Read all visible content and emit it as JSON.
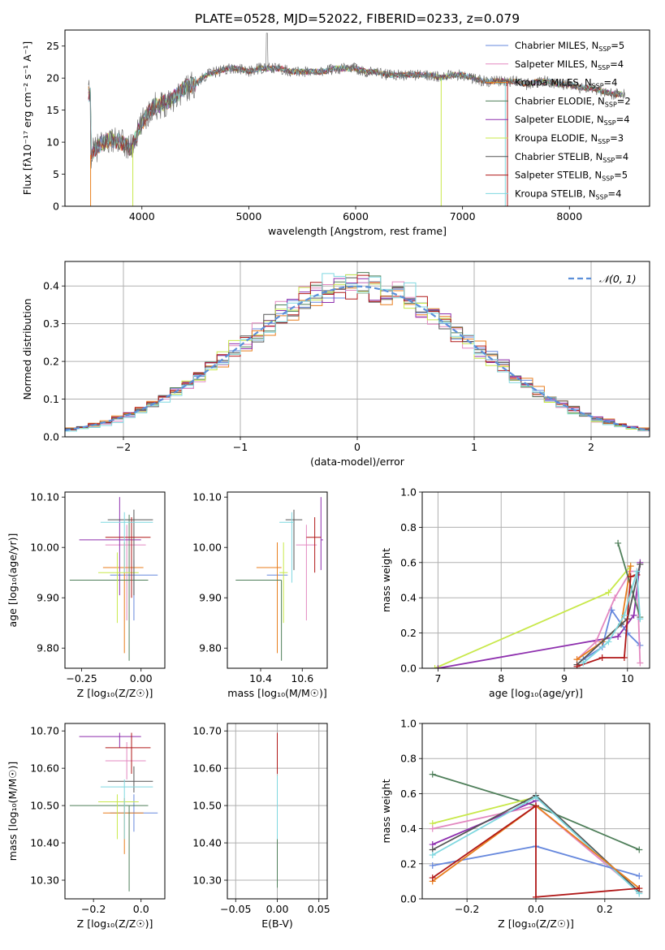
{
  "figure_title": "PLATE=0528, MJD=52022, FIBERID=0233, z=0.079",
  "colors": {
    "Chabrier MILES": "#6688dd",
    "Salpeter MILES": "#e388c0",
    "Kroupa MILES": "#e87e1e",
    "Chabrier ELODIE": "#4f7f5a",
    "Salpeter ELODIE": "#8e2fae",
    "Kroupa ELODIE": "#c8e84a",
    "Chabrier STELIB": "#555555",
    "Salpeter STELIB": "#b01818",
    "Kroupa STELIB": "#7fd8e0",
    "gauss": "#5b8fd9",
    "grid": "#b0b0b0"
  },
  "legend_models": [
    {
      "name": "Chabrier MILES",
      "label": "Chabrier MILES, N",
      "sub": "SSP",
      "tail": "=5"
    },
    {
      "name": "Salpeter MILES",
      "label": "Salpeter MILES, N",
      "sub": "SSP",
      "tail": "=4"
    },
    {
      "name": "Kroupa MILES",
      "label": "Kroupa MILES, N",
      "sub": "SSP",
      "tail": "=4"
    },
    {
      "name": "Chabrier ELODIE",
      "label": "Chabrier ELODIE, N",
      "sub": "SSP",
      "tail": "=2"
    },
    {
      "name": "Salpeter ELODIE",
      "label": "Salpeter ELODIE, N",
      "sub": "SSP",
      "tail": "=4"
    },
    {
      "name": "Kroupa ELODIE",
      "label": "Kroupa ELODIE, N",
      "sub": "SSP",
      "tail": "=3"
    },
    {
      "name": "Chabrier STELIB",
      "label": "Chabrier STELIB, N",
      "sub": "SSP",
      "tail": "=4"
    },
    {
      "name": "Salpeter STELIB",
      "label": "Salpeter STELIB, N",
      "sub": "SSP",
      "tail": "=5"
    },
    {
      "name": "Kroupa STELIB",
      "label": "Kroupa STELIB, N",
      "sub": "SSP",
      "tail": "=4"
    }
  ],
  "chart_data": [
    {
      "id": "spectrum",
      "type": "line",
      "title": "PLATE=0528, MJD=52022, FIBERID=0233, z=0.079",
      "xlabel": "wavelength [Angstrom, rest frame]",
      "ylabel": "Flux [fλ10⁻¹⁷ erg cm⁻² s⁻¹ A⁻¹]",
      "xlim": [
        3280,
        8750
      ],
      "ylim": [
        0,
        27.5
      ],
      "xticks": [
        4000,
        5000,
        6000,
        7000,
        8000
      ],
      "yticks": [
        0,
        5,
        10,
        15,
        20,
        25
      ],
      "grid": false,
      "legend": "top-right",
      "observed_spectrum_x": [
        3520,
        3600,
        3700,
        3800,
        3900,
        4000,
        4100,
        4200,
        4300,
        4400,
        4500,
        4600,
        4700,
        4800,
        4900,
        5000,
        5100,
        5200,
        5300,
        5400,
        5500,
        5600,
        5700,
        5800,
        5900,
        6000,
        6100,
        6200,
        6300,
        6400,
        6500,
        6600,
        6700,
        6800,
        6900,
        7000,
        7100,
        7200,
        7300,
        7400,
        7500,
        7600,
        7700,
        7800,
        7900,
        8000,
        8100,
        8200,
        8300,
        8400,
        8500
      ],
      "observed_spectrum_y": [
        8.0,
        9.5,
        10.5,
        10.0,
        9.0,
        13.0,
        15.5,
        16.0,
        17.0,
        18.5,
        19.0,
        20.5,
        21.0,
        21.5,
        21.5,
        21.0,
        21.5,
        21.5,
        21.5,
        21.0,
        21.0,
        21.0,
        21.0,
        21.5,
        21.5,
        21.5,
        21.0,
        21.0,
        20.5,
        20.5,
        20.5,
        20.5,
        20.5,
        20.0,
        20.5,
        20.5,
        20.0,
        19.5,
        19.5,
        19.5,
        19.5,
        19.0,
        19.5,
        19.5,
        19.0,
        19.0,
        18.5,
        18.5,
        18.0,
        17.5,
        17.5
      ],
      "series": [
        {
          "name": "Chabrier MILES, NSSP=5"
        },
        {
          "name": "Salpeter MILES, NSSP=4"
        },
        {
          "name": "Kroupa MILES, NSSP=4"
        },
        {
          "name": "Chabrier ELODIE, NSSP=2"
        },
        {
          "name": "Salpeter ELODIE, NSSP=4"
        },
        {
          "name": "Kroupa ELODIE, NSSP=3"
        },
        {
          "name": "Chabrier STELIB, NSSP=4"
        },
        {
          "name": "Salpeter STELIB, NSSP=5"
        },
        {
          "name": "Kroupa STELIB, NSSP=4"
        }
      ]
    },
    {
      "id": "residuals",
      "type": "line",
      "xlabel": "(data-model)/error",
      "ylabel": "Normed distribution",
      "xlim": [
        -2.5,
        2.5
      ],
      "ylim": [
        0,
        0.465
      ],
      "xticks": [
        -2,
        -1,
        0,
        1,
        2
      ],
      "yticks": [
        0.0,
        0.1,
        0.2,
        0.3,
        0.4
      ],
      "grid": true,
      "legend": "top-right",
      "legend_label": "𝒩(0, 1)",
      "bin_width": 0.1,
      "series_offsets": [
        0.01,
        -0.015,
        0.02,
        -0.01,
        0.015,
        -0.02,
        0.005,
        -0.005,
        0.012
      ],
      "series_scales": [
        1.0,
        0.97,
        1.03,
        0.99,
        1.02,
        0.98,
        1.01,
        1.0,
        0.96
      ]
    },
    {
      "id": "age_vs_Z",
      "type": "scatter",
      "xlabel": "Z [log₁₀(Z/Z☉)]",
      "ylabel": "age  [log₁₀(age/yr)]",
      "xlim": [
        -0.32,
        0.1
      ],
      "ylim": [
        9.76,
        10.11
      ],
      "xticks": [
        -0.25,
        0.0
      ],
      "xticklabels": [
        "−0.25",
        "0.00"
      ],
      "yticks": [
        9.8,
        9.9,
        10.0,
        10.1
      ],
      "grid": false,
      "points": [
        {
          "model": "Chabrier MILES",
          "x": -0.03,
          "xerr": [
            0.1,
            0.1
          ],
          "y": 9.945,
          "yerr": [
            0.09,
            0.03
          ]
        },
        {
          "model": "Salpeter MILES",
          "x": -0.06,
          "xerr": [
            0.09,
            0.08
          ],
          "y": 10.005,
          "yerr": [
            0.15,
            0.04
          ]
        },
        {
          "model": "Kroupa MILES",
          "x": -0.07,
          "xerr": [
            0.09,
            0.08
          ],
          "y": 9.96,
          "yerr": [
            0.17,
            0.05
          ]
        },
        {
          "model": "Chabrier ELODIE",
          "x": -0.05,
          "xerr": [
            0.25,
            0.08
          ],
          "y": 9.935,
          "yerr": [
            0.16,
            0.13
          ]
        },
        {
          "model": "Salpeter ELODIE",
          "x": -0.09,
          "xerr": [
            0.17,
            0.09
          ],
          "y": 10.015,
          "yerr": [
            0.11,
            0.085
          ]
        },
        {
          "model": "Kroupa ELODIE",
          "x": -0.1,
          "xerr": [
            0.08,
            0.09
          ],
          "y": 9.95,
          "yerr": [
            0.1,
            0.04
          ]
        },
        {
          "model": "Chabrier STELIB",
          "x": -0.03,
          "xerr": [
            0.11,
            0.08
          ],
          "y": 10.055,
          "yerr": [
            0.15,
            0.02
          ]
        },
        {
          "model": "Salpeter STELIB",
          "x": -0.04,
          "xerr": [
            0.11,
            0.08
          ],
          "y": 10.02,
          "yerr": [
            0.12,
            0.04
          ]
        },
        {
          "model": "Kroupa STELIB",
          "x": -0.07,
          "xerr": [
            0.1,
            0.12
          ],
          "y": 10.05,
          "yerr": [
            0.1,
            0.02
          ]
        }
      ]
    },
    {
      "id": "age_vs_mass",
      "type": "scatter",
      "xlabel": "mass [log₁₀(M/M☉)]",
      "ylabel": "",
      "xlim": [
        10.24,
        10.72
      ],
      "ylim": [
        9.76,
        10.11
      ],
      "xticks": [
        10.4,
        10.6
      ],
      "yticks": [
        9.8,
        9.9,
        10.0,
        10.1
      ],
      "grid": false,
      "points": [
        {
          "model": "Chabrier MILES",
          "x": 10.48,
          "xerr": [
            0.05,
            0.05
          ],
          "y": 9.945,
          "yerr": [
            0.09,
            0.03
          ]
        },
        {
          "model": "Salpeter MILES",
          "x": 10.62,
          "xerr": [
            0.05,
            0.05
          ],
          "y": 10.005,
          "yerr": [
            0.15,
            0.04
          ]
        },
        {
          "model": "Kroupa MILES",
          "x": 10.48,
          "xerr": [
            0.1,
            0.02
          ],
          "y": 9.96,
          "yerr": [
            0.17,
            0.05
          ]
        },
        {
          "model": "Chabrier ELODIE",
          "x": 10.5,
          "xerr": [
            0.22,
            0.0
          ],
          "y": 9.935,
          "yerr": [
            0.16,
            0.0
          ]
        },
        {
          "model": "Salpeter ELODIE",
          "x": 10.69,
          "xerr": [
            0.0,
            0.01
          ],
          "y": 10.015,
          "yerr": [
            0.06,
            0.085
          ]
        },
        {
          "model": "Kroupa ELODIE",
          "x": 10.51,
          "xerr": [
            0.02,
            0.02
          ],
          "y": 9.95,
          "yerr": [
            0.1,
            0.06
          ]
        },
        {
          "model": "Chabrier STELIB",
          "x": 10.56,
          "xerr": [
            0.04,
            0.04
          ],
          "y": 10.055,
          "yerr": [
            0.1,
            0.02
          ]
        },
        {
          "model": "Salpeter STELIB",
          "x": 10.66,
          "xerr": [
            0.04,
            0.03
          ],
          "y": 10.02,
          "yerr": [
            0.07,
            0.04
          ]
        },
        {
          "model": "Kroupa STELIB",
          "x": 10.55,
          "xerr": [
            0.06,
            0.01
          ],
          "y": 10.05,
          "yerr": [
            0.12,
            0.02
          ]
        }
      ]
    },
    {
      "id": "weight_vs_age",
      "type": "line",
      "xlabel": "age  [log₁₀(age/yr)]",
      "ylabel": "mass weight",
      "xlim": [
        6.75,
        10.35
      ],
      "ylim": [
        0,
        1.0
      ],
      "xticks": [
        7,
        8,
        9,
        10
      ],
      "yticks": [
        0.0,
        0.2,
        0.4,
        0.6,
        0.8,
        1.0
      ],
      "grid": true,
      "series": [
        {
          "model": "Kroupa ELODIE",
          "x": [
            6.95,
            9.7,
            10.05
          ],
          "y": [
            0.0,
            0.43,
            0.58
          ]
        },
        {
          "model": "Salpeter ELODIE",
          "x": [
            7.0,
            9.85,
            10.1,
            10.2
          ],
          "y": [
            0.0,
            0.18,
            0.3,
            0.6
          ]
        },
        {
          "model": "Chabrier MILES",
          "x": [
            9.3,
            9.6,
            9.75,
            10.0,
            10.2
          ],
          "y": [
            0.05,
            0.12,
            0.33,
            0.2,
            0.13
          ]
        },
        {
          "model": "Salpeter MILES",
          "x": [
            9.2,
            9.5,
            9.8,
            10.05,
            10.15,
            10.2
          ],
          "y": [
            0.05,
            0.15,
            0.4,
            0.55,
            0.55,
            0.03
          ]
        },
        {
          "model": "Kroupa MILES",
          "x": [
            9.2,
            9.6,
            9.9,
            10.05
          ],
          "y": [
            0.05,
            0.15,
            0.25,
            0.58
          ]
        },
        {
          "model": "Chabrier ELODIE",
          "x": [
            9.85,
            10.2
          ],
          "y": [
            0.71,
            0.29
          ]
        },
        {
          "model": "Chabrier STELIB",
          "x": [
            9.2,
            9.9,
            10.0,
            10.2
          ],
          "y": [
            0.02,
            0.25,
            0.28,
            0.59
          ]
        },
        {
          "model": "Salpeter STELIB",
          "x": [
            9.2,
            9.6,
            9.95,
            10.05,
            10.15
          ],
          "y": [
            0.01,
            0.06,
            0.06,
            0.52,
            0.53
          ]
        },
        {
          "model": "Kroupa STELIB",
          "x": [
            9.3,
            9.7,
            9.95,
            10.15,
            10.2
          ],
          "y": [
            0.03,
            0.15,
            0.3,
            0.55,
            0.28
          ]
        }
      ]
    },
    {
      "id": "mass_vs_Z",
      "type": "scatter",
      "xlabel": "Z [log₁₀(Z/Z☉)]",
      "ylabel": "mass [log₁₀(M/M☉)]",
      "xlim": [
        -0.32,
        0.1
      ],
      "ylim": [
        10.25,
        10.72
      ],
      "xticks": [
        -0.2,
        0.0
      ],
      "xticklabels": [
        "−0.2",
        "0.0"
      ],
      "yticks": [
        10.3,
        10.4,
        10.5,
        10.6,
        10.7
      ],
      "grid": false,
      "points": [
        {
          "model": "Chabrier MILES",
          "x": -0.03,
          "xerr": [
            0.1,
            0.1
          ],
          "y": 10.48,
          "yerr": [
            0.05,
            0.05
          ]
        },
        {
          "model": "Salpeter MILES",
          "x": -0.06,
          "xerr": [
            0.09,
            0.08
          ],
          "y": 10.62,
          "yerr": [
            0.05,
            0.05
          ]
        },
        {
          "model": "Kroupa MILES",
          "x": -0.07,
          "xerr": [
            0.09,
            0.08
          ],
          "y": 10.48,
          "yerr": [
            0.11,
            0.04
          ]
        },
        {
          "model": "Chabrier ELODIE",
          "x": -0.05,
          "xerr": [
            0.25,
            0.08
          ],
          "y": 10.5,
          "yerr": [
            0.23,
            0.0
          ]
        },
        {
          "model": "Salpeter ELODIE",
          "x": -0.09,
          "xerr": [
            0.17,
            0.09
          ],
          "y": 10.685,
          "yerr": [
            0.03,
            0.01
          ]
        },
        {
          "model": "Kroupa ELODIE",
          "x": -0.1,
          "xerr": [
            0.08,
            0.09
          ],
          "y": 10.51,
          "yerr": [
            0.1,
            0.02
          ]
        },
        {
          "model": "Chabrier STELIB",
          "x": -0.03,
          "xerr": [
            0.11,
            0.08
          ],
          "y": 10.565,
          "yerr": [
            0.03,
            0.04
          ]
        },
        {
          "model": "Salpeter STELIB",
          "x": -0.04,
          "xerr": [
            0.11,
            0.08
          ],
          "y": 10.655,
          "yerr": [
            0.07,
            0.04
          ]
        },
        {
          "model": "Kroupa STELIB",
          "x": -0.07,
          "xerr": [
            0.1,
            0.12
          ],
          "y": 10.55,
          "yerr": [
            0.14,
            0.02
          ]
        }
      ]
    },
    {
      "id": "mass_vs_EBV",
      "type": "scatter",
      "xlabel": "E(B-V)",
      "ylabel": "",
      "xlim": [
        -0.06,
        0.06
      ],
      "ylim": [
        10.25,
        10.72
      ],
      "xticks": [
        -0.05,
        0.0,
        0.05
      ],
      "xticklabels": [
        "−0.05",
        "0.00",
        "0.05"
      ],
      "yticks": [
        10.3,
        10.4,
        10.5,
        10.6,
        10.7
      ],
      "grid": true,
      "points": [
        {
          "model": "Chabrier ELODIE",
          "x": 0.0,
          "y": 10.5,
          "yerr": [
            0.22,
            0.0
          ]
        },
        {
          "model": "Kroupa ELODIE",
          "x": 0.0,
          "y": 10.51,
          "yerr": [
            0.1,
            0.02
          ]
        },
        {
          "model": "Kroupa STELIB",
          "x": 0.0,
          "y": 10.55,
          "yerr": [
            0.14,
            0.03
          ]
        },
        {
          "model": "Salpeter ELODIE",
          "x": 0.0,
          "y": 10.685,
          "yerr": [
            0.03,
            0.01
          ]
        },
        {
          "model": "Salpeter STELIB",
          "x": 0.0,
          "y": 10.655,
          "yerr": [
            0.07,
            0.04
          ]
        }
      ]
    },
    {
      "id": "weight_vs_Z",
      "type": "line",
      "xlabel": "Z [log₁₀(Z/Z☉)]",
      "ylabel": "mass weight",
      "xlim": [
        -0.33,
        0.33
      ],
      "ylim": [
        0,
        1.0
      ],
      "xticks": [
        -0.2,
        0.0,
        0.2
      ],
      "xticklabels": [
        "−0.2",
        "0.0",
        "0.2"
      ],
      "yticks": [
        0.0,
        0.2,
        0.4,
        0.6,
        0.8,
        1.0
      ],
      "grid": true,
      "series": [
        {
          "model": "Chabrier ELODIE",
          "x": [
            -0.3,
            0.0,
            0.3
          ],
          "y": [
            0.71,
            0.53,
            0.28
          ]
        },
        {
          "model": "Kroupa ELODIE",
          "x": [
            -0.3,
            0.0
          ],
          "y": [
            0.43,
            0.58
          ]
        },
        {
          "model": "Salpeter MILES",
          "x": [
            -0.3,
            0.0,
            0.3
          ],
          "y": [
            0.4,
            0.53,
            0.04
          ]
        },
        {
          "model": "Salpeter ELODIE",
          "x": [
            -0.3,
            0.0
          ],
          "y": [
            0.31,
            0.56
          ]
        },
        {
          "model": "Chabrier STELIB",
          "x": [
            -0.3,
            0.0,
            0.3
          ],
          "y": [
            0.28,
            0.59,
            0.04
          ]
        },
        {
          "model": "Kroupa STELIB",
          "x": [
            -0.3,
            0.0,
            0.3
          ],
          "y": [
            0.25,
            0.58,
            0.03
          ]
        },
        {
          "model": "Chabrier MILES",
          "x": [
            -0.3,
            0.0,
            0.3
          ],
          "y": [
            0.19,
            0.3,
            0.13
          ]
        },
        {
          "model": "Kroupa MILES",
          "x": [
            -0.3,
            0.0,
            0.3
          ],
          "y": [
            0.1,
            0.53,
            0.06
          ]
        },
        {
          "model": "Salpeter STELIB",
          "x": [
            -0.3,
            0.0,
            0.0,
            0.3
          ],
          "y": [
            0.12,
            0.53,
            0.01,
            0.06
          ]
        }
      ]
    }
  ]
}
